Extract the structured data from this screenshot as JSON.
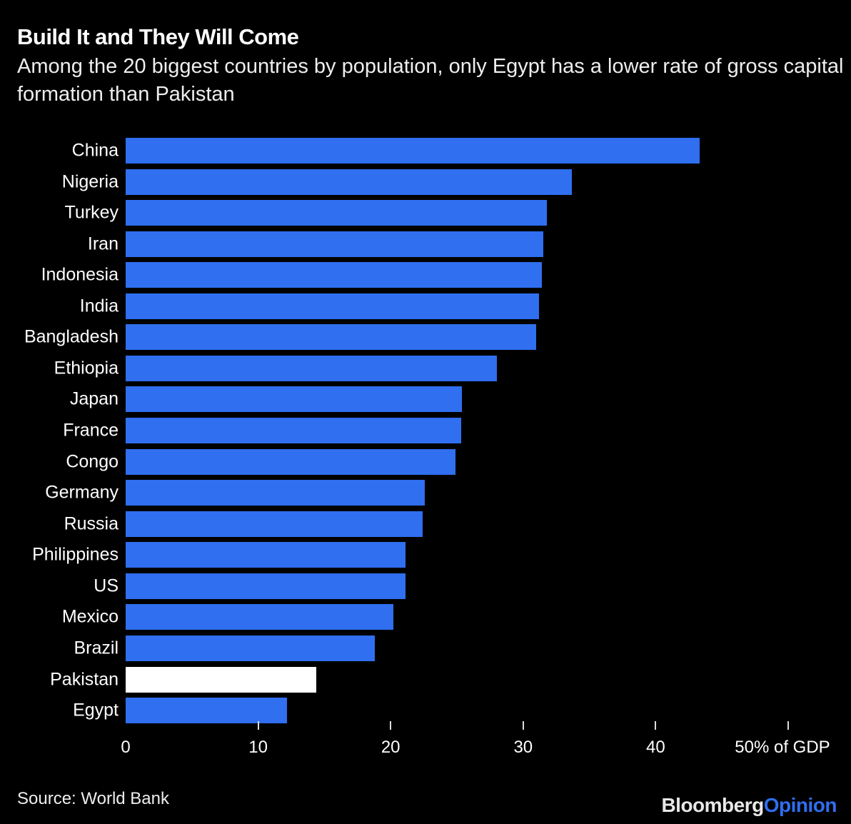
{
  "chart_data": {
    "type": "bar",
    "orientation": "horizontal",
    "title": "Build It and They Will Come",
    "subtitle": "Among the 20 biggest countries by population, only Egypt has a lower rate of gross capital formation than Pakistan",
    "categories": [
      "China",
      "Nigeria",
      "Turkey",
      "Iran",
      "Indonesia",
      "India",
      "Bangladesh",
      "Ethiopia",
      "Japan",
      "France",
      "Congo",
      "Germany",
      "Russia",
      "Philippines",
      "US",
      "Mexico",
      "Brazil",
      "Pakistan",
      "Egypt"
    ],
    "values": [
      43.3,
      33.7,
      31.8,
      31.5,
      31.4,
      31.2,
      31.0,
      28.0,
      25.4,
      25.3,
      24.9,
      22.6,
      22.4,
      21.1,
      21.1,
      20.2,
      18.8,
      14.4,
      12.2
    ],
    "highlight": "Pakistan",
    "xlim": [
      0,
      50
    ],
    "xticks": [
      0,
      10,
      20,
      30,
      40,
      50
    ],
    "xtick_labels": [
      "0",
      "10",
      "20",
      "30",
      "40",
      "50% of GDP"
    ],
    "xlabel": "% of GDP",
    "colors": {
      "bar": "#2f6ff0",
      "highlight": "#ffffff",
      "background": "#000000"
    },
    "grid": false
  },
  "footer": {
    "source": "Source: World Bank",
    "logo_brand": "Bloomberg",
    "logo_section": "Opinion"
  }
}
